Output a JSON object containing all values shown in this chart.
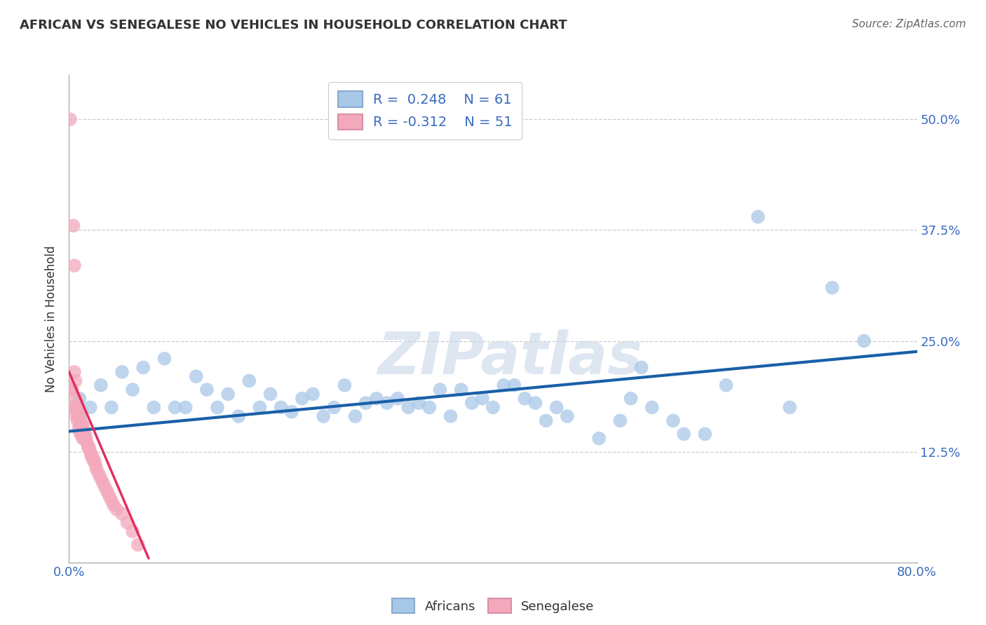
{
  "title": "AFRICAN VS SENEGALESE NO VEHICLES IN HOUSEHOLD CORRELATION CHART",
  "source": "Source: ZipAtlas.com",
  "ylabel": "No Vehicles in Household",
  "xlim": [
    0.0,
    0.8
  ],
  "ylim": [
    0.0,
    0.55
  ],
  "african_color": "#a8c8e8",
  "senegalese_color": "#f4a8bc",
  "african_line_color": "#1a5fa8",
  "senegalese_line_color": "#e03060",
  "r_african": 0.248,
  "n_african": 61,
  "r_senegalese": -0.312,
  "n_senegalese": 51,
  "watermark": "ZIPatlas",
  "background_color": "#ffffff",
  "african_x": [
    0.01,
    0.01,
    0.02,
    0.03,
    0.04,
    0.05,
    0.06,
    0.07,
    0.08,
    0.09,
    0.1,
    0.11,
    0.12,
    0.13,
    0.14,
    0.15,
    0.16,
    0.17,
    0.18,
    0.19,
    0.2,
    0.21,
    0.22,
    0.23,
    0.24,
    0.25,
    0.26,
    0.27,
    0.28,
    0.29,
    0.3,
    0.31,
    0.32,
    0.33,
    0.34,
    0.35,
    0.36,
    0.37,
    0.38,
    0.39,
    0.4,
    0.41,
    0.42,
    0.43,
    0.44,
    0.45,
    0.46,
    0.47,
    0.5,
    0.52,
    0.53,
    0.54,
    0.55,
    0.57,
    0.58,
    0.6,
    0.62,
    0.65,
    0.68,
    0.72,
    0.75
  ],
  "african_y": [
    0.185,
    0.165,
    0.175,
    0.2,
    0.175,
    0.215,
    0.195,
    0.22,
    0.175,
    0.23,
    0.175,
    0.175,
    0.21,
    0.195,
    0.175,
    0.19,
    0.165,
    0.205,
    0.175,
    0.19,
    0.175,
    0.17,
    0.185,
    0.19,
    0.165,
    0.175,
    0.2,
    0.165,
    0.18,
    0.185,
    0.18,
    0.185,
    0.175,
    0.18,
    0.175,
    0.195,
    0.165,
    0.195,
    0.18,
    0.185,
    0.175,
    0.2,
    0.2,
    0.185,
    0.18,
    0.16,
    0.175,
    0.165,
    0.14,
    0.16,
    0.185,
    0.22,
    0.175,
    0.16,
    0.145,
    0.145,
    0.2,
    0.39,
    0.175,
    0.31,
    0.25
  ],
  "senegalese_x": [
    0.001,
    0.002,
    0.003,
    0.003,
    0.004,
    0.004,
    0.005,
    0.005,
    0.006,
    0.006,
    0.007,
    0.007,
    0.008,
    0.008,
    0.009,
    0.009,
    0.01,
    0.01,
    0.011,
    0.011,
    0.012,
    0.012,
    0.013,
    0.013,
    0.014,
    0.014,
    0.015,
    0.016,
    0.017,
    0.018,
    0.019,
    0.02,
    0.021,
    0.022,
    0.023,
    0.024,
    0.025,
    0.026,
    0.028,
    0.03,
    0.032,
    0.034,
    0.036,
    0.038,
    0.04,
    0.042,
    0.045,
    0.05,
    0.055,
    0.06,
    0.065
  ],
  "senegalese_y": [
    0.5,
    0.195,
    0.195,
    0.175,
    0.175,
    0.38,
    0.335,
    0.215,
    0.205,
    0.175,
    0.185,
    0.165,
    0.175,
    0.16,
    0.165,
    0.15,
    0.17,
    0.155,
    0.16,
    0.145,
    0.155,
    0.145,
    0.155,
    0.14,
    0.15,
    0.14,
    0.145,
    0.14,
    0.135,
    0.13,
    0.13,
    0.125,
    0.12,
    0.12,
    0.115,
    0.115,
    0.11,
    0.105,
    0.1,
    0.095,
    0.09,
    0.085,
    0.08,
    0.075,
    0.07,
    0.065,
    0.06,
    0.055,
    0.045,
    0.035,
    0.02
  ],
  "af_line_x": [
    0.0,
    0.8
  ],
  "af_line_y": [
    0.148,
    0.238
  ],
  "sn_line_x": [
    0.0,
    0.075
  ],
  "sn_line_y": [
    0.215,
    0.005
  ]
}
